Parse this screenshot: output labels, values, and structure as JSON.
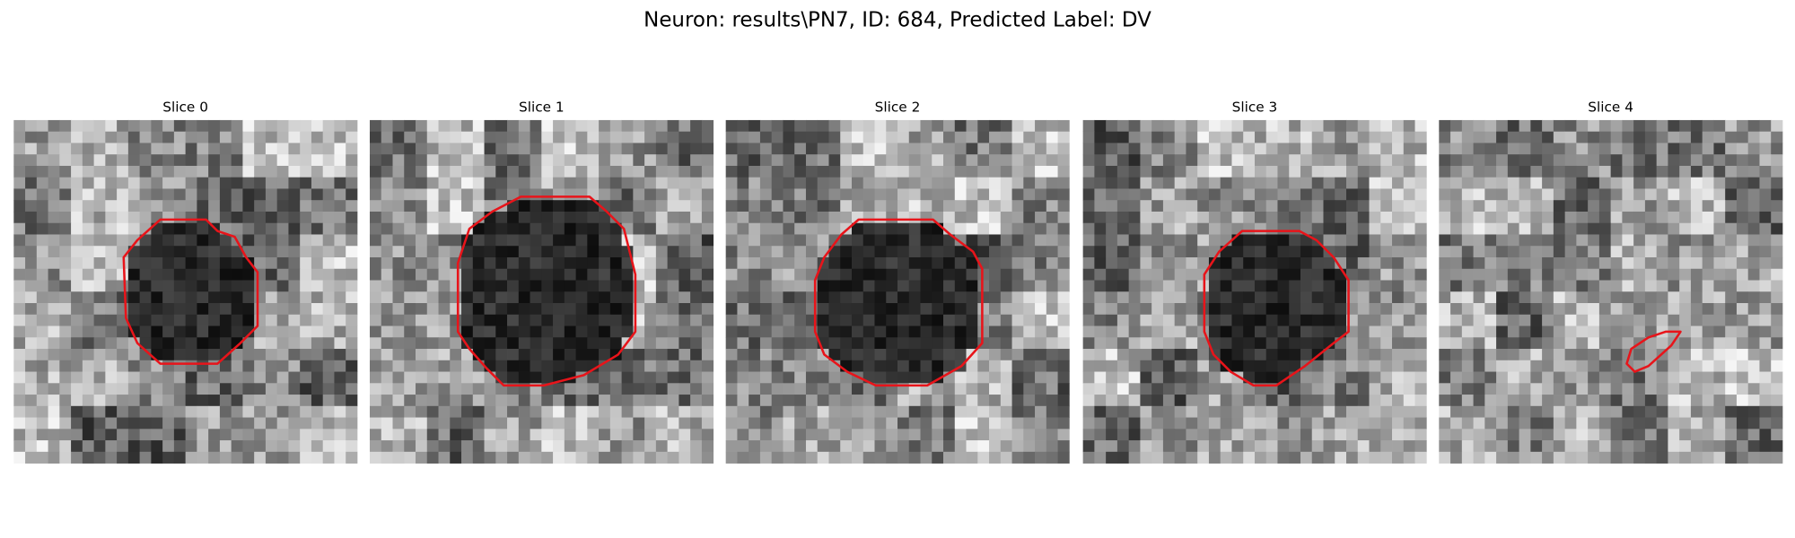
{
  "title": "Neuron: results\\PN7, ID: 684, Predicted Label: DV",
  "panels": [
    {
      "title": "Slice 0"
    },
    {
      "title": "Slice 1"
    },
    {
      "title": "Slice 2"
    },
    {
      "title": "Slice 3"
    },
    {
      "title": "Slice 4"
    }
  ]
}
